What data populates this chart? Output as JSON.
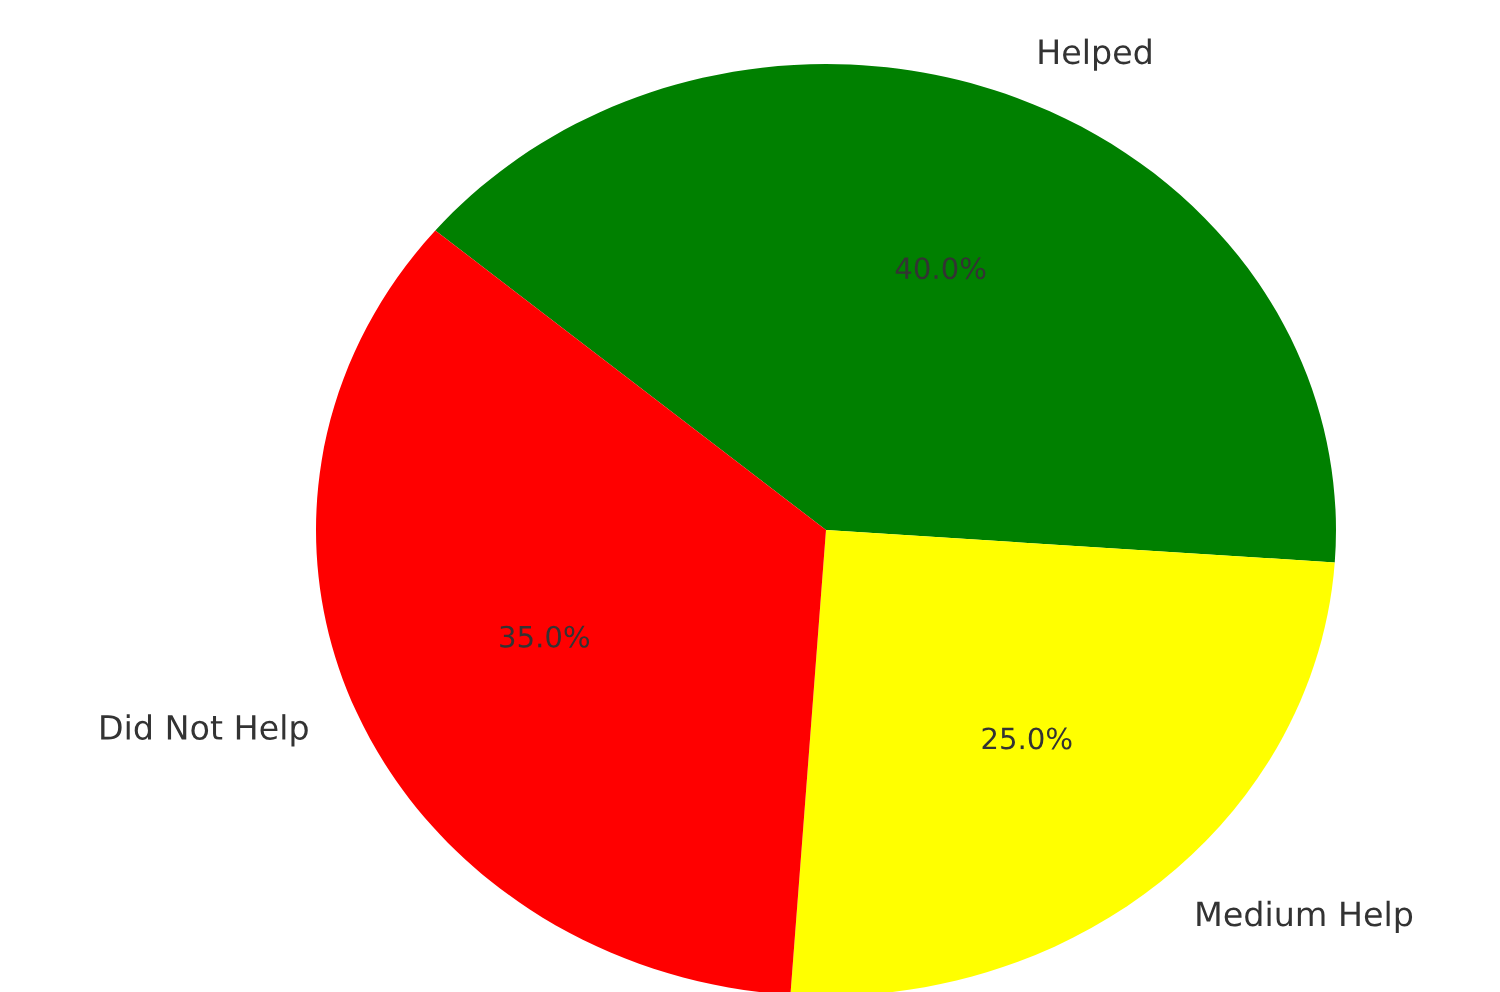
{
  "chart_data": {
    "type": "pie",
    "categories": [
      "Helped",
      "Medium Help",
      "Did Not Help"
    ],
    "values": [
      40,
      25,
      35
    ],
    "colors": [
      "#008000",
      "#ffff00",
      "#ff0000"
    ],
    "value_labels": [
      "40.0%",
      "25.0%",
      "35.0%"
    ]
  }
}
